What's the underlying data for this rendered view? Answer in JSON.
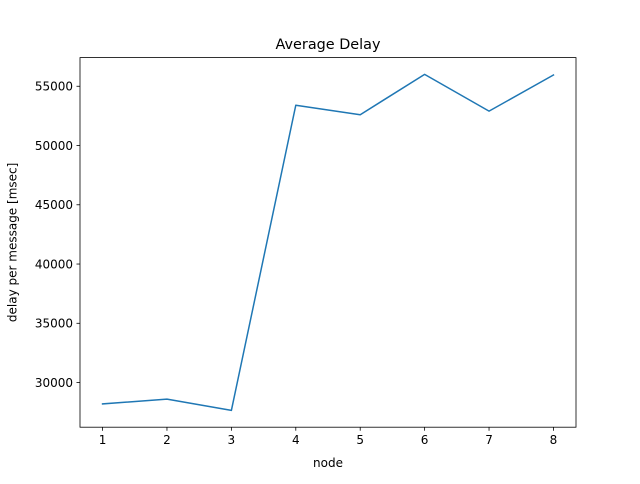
{
  "chart_data": {
    "type": "line",
    "title": "Average Delay",
    "xlabel": "node",
    "ylabel": "delay per message [msec]",
    "x": [
      1,
      2,
      3,
      4,
      5,
      6,
      7,
      8
    ],
    "series": [
      {
        "values": [
          28200,
          28600,
          27650,
          53400,
          52600,
          56000,
          52900,
          55950
        ],
        "color": "#1f77b4"
      }
    ],
    "xticks": [
      1,
      2,
      3,
      4,
      5,
      6,
      7,
      8
    ],
    "yticks": [
      30000,
      35000,
      40000,
      45000,
      50000,
      55000
    ],
    "xlim": [
      0.65,
      8.35
    ],
    "ylim": [
      26233,
      57418
    ],
    "grid": false,
    "legend": "none"
  }
}
